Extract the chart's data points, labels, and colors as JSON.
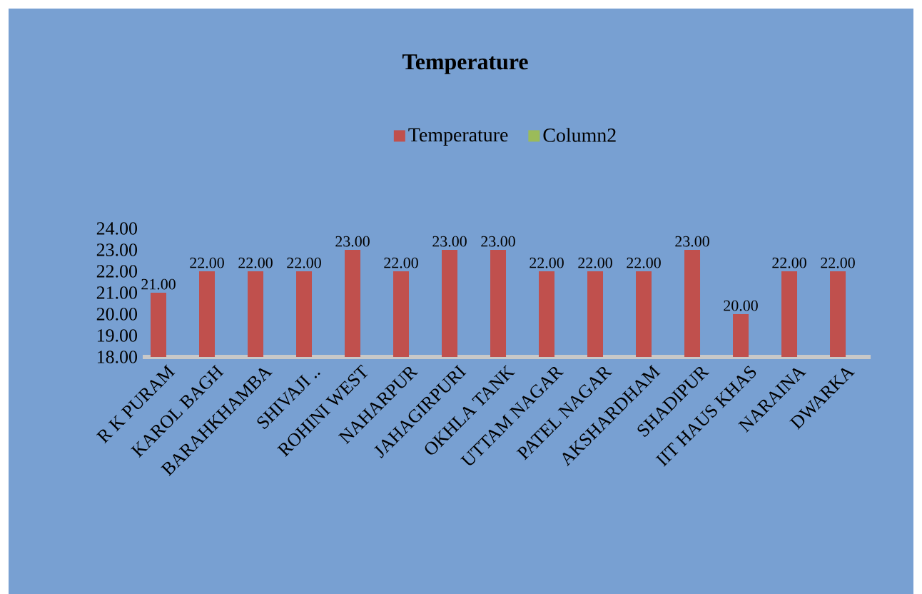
{
  "chart_data": {
    "type": "bar",
    "title": "Temperature",
    "categories": [
      "R K PURAM",
      "KAROL BAGH",
      "BARAHKHAMBA",
      "SHIVAJI ..",
      "ROHINI WEST",
      "NAHARPUR",
      "JAHAGIRPURI",
      "OKHLA TANK",
      "UTTAM NAGAR",
      "PATEL NAGAR",
      "AKSHARDHAM",
      "SHADIPUR",
      "IIT HAUS KHAS",
      "NARAINA",
      "DWARKA"
    ],
    "series": [
      {
        "name": "Temperature",
        "color": "#c0504d",
        "values": [
          21,
          22,
          22,
          22,
          23,
          22,
          23,
          23,
          22,
          22,
          22,
          23,
          20,
          22,
          22
        ],
        "value_labels": [
          "21.00",
          "22.00",
          "22.00",
          "22.00",
          "23.00",
          "22.00",
          "23.00",
          "23.00",
          "22.00",
          "22.00",
          "22.00",
          "23.00",
          "20.00",
          "22.00",
          "22.00"
        ]
      },
      {
        "name": "Column2",
        "color": "#9bbb59",
        "values": [
          null,
          null,
          null,
          null,
          null,
          null,
          null,
          null,
          null,
          null,
          null,
          null,
          null,
          null,
          null
        ]
      }
    ],
    "ylim": [
      18,
      24
    ],
    "yticks": [
      {
        "value": 18,
        "label": "18.00"
      },
      {
        "value": 19,
        "label": "19.00"
      },
      {
        "value": 20,
        "label": "20.00"
      },
      {
        "value": 21,
        "label": "21.00"
      },
      {
        "value": 22,
        "label": "22.00"
      },
      {
        "value": 23,
        "label": "23.00"
      },
      {
        "value": 24,
        "label": "24.00"
      }
    ],
    "grid": false,
    "legend": "top"
  }
}
